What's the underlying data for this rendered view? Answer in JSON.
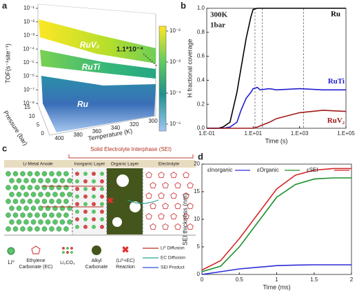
{
  "panel_labels": [
    "a",
    "b",
    "c",
    "d"
  ],
  "chart_data": [
    {
      "type": "surface3d",
      "ylabel": "TOF(s⁻¹site⁻¹)",
      "yscale": "log",
      "ylim": [
        1e-08,
        0.1
      ],
      "yticks": [
        {
          "value": 0.1,
          "label": "10⁻¹"
        },
        {
          "value": 0.01,
          "label": "10⁻²"
        },
        {
          "value": 0.001,
          "label": "10⁻³"
        },
        {
          "value": 0.0001,
          "label": "10⁻⁴"
        },
        {
          "value": 1e-05,
          "label": "10⁻⁵"
        },
        {
          "value": 1e-06,
          "label": "10⁻⁶"
        },
        {
          "value": 1e-07,
          "label": "10⁻⁷"
        },
        {
          "value": 1e-08,
          "label": "10⁻⁸"
        }
      ],
      "xlabel": "Temperature (K)",
      "xlim": [
        400,
        300
      ],
      "xticks": [
        400,
        380,
        360,
        340,
        320,
        300
      ],
      "zlabel": "Pressure (bar)",
      "zlim": [
        15,
        0
      ],
      "zticks": [
        15,
        10,
        5,
        0
      ],
      "colorbar": {
        "scale": "log",
        "lim": [
          1e-05,
          0.01
        ],
        "ticks": [
          {
            "value": 0.01,
            "label": "10⁻²"
          },
          {
            "value": 0.001,
            "label": "10⁻³"
          },
          {
            "value": 0.0001,
            "label": "10⁻⁴"
          },
          {
            "value": 1e-05,
            "label": "10⁻⁵"
          }
        ]
      },
      "series": [
        {
          "name": "RuV₂"
        },
        {
          "name": "RuTi"
        },
        {
          "name": "Ru"
        }
      ],
      "annotation": "1.1*10⁻⁴"
    },
    {
      "type": "line",
      "xscale": "log",
      "xlabel": "Time (s)",
      "ylabel": "H fractional coverage",
      "annotations": [
        "300K",
        "1bar"
      ],
      "x": [
        0.1,
        0.3,
        0.5,
        1,
        2,
        3,
        5,
        8,
        10,
        15,
        20,
        50,
        100,
        1000,
        10000,
        100000
      ],
      "series": [
        {
          "name": "Ru",
          "color": "#000000",
          "values": [
            0,
            0,
            0.01,
            0.05,
            0.3,
            0.5,
            0.75,
            0.93,
            0.99,
            1,
            1,
            1,
            1,
            1,
            1,
            1
          ]
        },
        {
          "name": "RuTi",
          "color": "#1f1fd0",
          "values": [
            0,
            0,
            0,
            0.01,
            0.05,
            0.15,
            0.25,
            0.3,
            0.33,
            0.34,
            0.32,
            0.33,
            0.32,
            0.33,
            0.32,
            0.32
          ]
        },
        {
          "name": "RuV₂",
          "color": "#a01818",
          "values": [
            0,
            0,
            0,
            0,
            0,
            0,
            0,
            0,
            0,
            0.01,
            0.02,
            0.05,
            0.08,
            0.13,
            0.15,
            0.14
          ]
        }
      ],
      "vlines": [
        12,
        25,
        1500
      ],
      "xlim": [
        0.1,
        100000
      ],
      "xticks": [
        {
          "value": 0.1,
          "label": "1.E-01"
        },
        {
          "value": 10,
          "label": "1.E+01"
        },
        {
          "value": 1000,
          "label": "1.E+03"
        },
        {
          "value": 100000,
          "label": "1.E+05"
        }
      ],
      "ylim": [
        0,
        1
      ],
      "yticks": [
        {
          "value": 0,
          "label": "0.0"
        },
        0.2,
        0.4,
        0.6,
        0.8,
        {
          "value": 1,
          "label": "1.0"
        }
      ]
    },
    {
      "type": "line",
      "xlabel": "Time (ms)",
      "ylabel": "SEI thickness (nm)",
      "legend": "top",
      "x": [
        0,
        0.25,
        0.5,
        0.75,
        1,
        1.25,
        1.5,
        1.75,
        2
      ],
      "series": [
        {
          "name": "εInorganic",
          "color": "#2b2bd6",
          "values": [
            0,
            0.5,
            1,
            1.3,
            1.6,
            1.7,
            1.75,
            1.75,
            1.75
          ]
        },
        {
          "name": "εOrganic",
          "color": "#1a8f2a",
          "values": [
            0.5,
            1.5,
            5,
            9.5,
            14,
            16.3,
            17.3,
            17.5,
            17.5
          ]
        },
        {
          "name": "εSEI",
          "color": "#d62828",
          "values": [
            0.8,
            2.5,
            6.5,
            11,
            15.5,
            18,
            18.9,
            19.2,
            19.2
          ]
        }
      ],
      "xlim": [
        0,
        2
      ],
      "xticks": [
        0,
        0.5,
        1,
        1.5,
        2
      ],
      "ylim": [
        0,
        20
      ],
      "yticks": [
        0,
        5,
        10,
        15,
        20
      ]
    }
  ],
  "diagram": {
    "header": "Solid Electrolyte Interphase (SEI)",
    "layers": [
      "Li-Metal Anode",
      "Inorganic Layer",
      "Organic Layer",
      "Electrolyte"
    ],
    "legend": {
      "li": "Li⁰",
      "ec": [
        "Ethylene",
        "Carbonate (EC)"
      ],
      "li2co3": "Li₂CO₃",
      "alkyl": [
        "Alkyl",
        "Carbonate"
      ],
      "reaction": [
        "(Li⁰+EC)",
        "Reaction"
      ],
      "lines": [
        "Li⁰ Diffusion",
        "EC Diffusion",
        "SEI Product"
      ]
    }
  }
}
